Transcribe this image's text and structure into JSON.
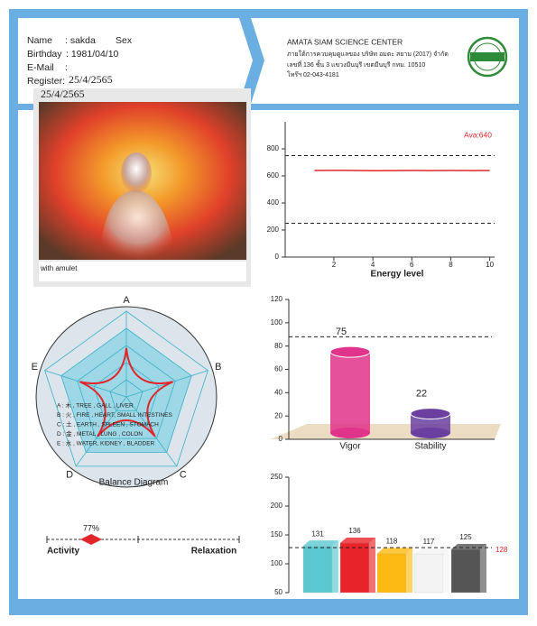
{
  "header": {
    "name_label": "Name",
    "name": ": sakda",
    "sex_label": "Sex",
    "birthday_label": "Birthday",
    "birthday": ": 1981/04/10",
    "email_label": "E-Mail",
    "email": ":",
    "register_label": "Register:",
    "register": "25/4/2565"
  },
  "company": {
    "name": "AMATA SIAM SCIENCE CENTER",
    "lines": [
      "ภายใต้การควบคุมดูแลของ บริษัท อมตะ สยาม (2017) จำกัด",
      "เลขที่ 136 ชั้น 3  แขวงมีนบุรี เขตมีนบุรี กทม. 10510",
      "โทร๊ฯ 02-043-4181"
    ]
  },
  "photo": {
    "date": "25/4/2565",
    "caption": "with amulet"
  },
  "energy_chart": {
    "type": "line",
    "xlabel": "Energy level",
    "annotation": "Ava:640",
    "color": "#e0262b",
    "x": [
      1,
      2,
      3,
      4,
      5,
      6,
      7,
      8,
      9,
      10
    ],
    "values": [
      640,
      641,
      640,
      638,
      639,
      640,
      639,
      640,
      639,
      640
    ],
    "xlim": [
      -0.5,
      10.25
    ],
    "xticks": [
      2,
      4,
      6,
      8,
      10
    ],
    "ylim": [
      0,
      1000
    ],
    "yticks": [
      0,
      200,
      400,
      600,
      800
    ],
    "reference_lines": [
      750,
      250
    ]
  },
  "balance": {
    "type": "radar",
    "axes": [
      "A",
      "B",
      "C",
      "D",
      "E"
    ],
    "values": [
      57,
      57,
      57,
      57,
      57
    ],
    "rlim": [
      0,
      100
    ],
    "rticks": [
      20,
      40,
      60,
      80,
      100
    ],
    "color": "#e0262b",
    "caption": "Balance Diagram",
    "legend": [
      "A : 木 , TREE , GALL , LIVER",
      "B : 火 , FIRE , HEART, SMALL INTESTINES",
      "C : 土 , EARTH , SPLEEN , STOMACH",
      "D : 金 , METAL , LUNG , COLON",
      "E : 水 , WATER, KIDNEY , BLADDER"
    ]
  },
  "vigor_chart": {
    "type": "cylinder",
    "categories": [
      "Vigor",
      "Stability"
    ],
    "values": [
      75,
      22
    ],
    "colors": [
      "#e0338a",
      "#6a3fa0"
    ],
    "ylim": [
      0,
      120
    ],
    "yticks": [
      0,
      20,
      40,
      60,
      80,
      100,
      120
    ],
    "reference": 88
  },
  "activity": {
    "type": "slider",
    "left_label": "Activity",
    "right_label": "Relaxation",
    "value": 77,
    "value_label": "77%",
    "xlim": [
      100,
      0
    ],
    "color": "#e0262b"
  },
  "bottom_chart": {
    "type": "bar3d",
    "values": [
      131,
      136,
      118,
      117,
      125
    ],
    "colors": [
      "#5bc8d0",
      "#e8232a",
      "#fdb913",
      "#f3f3f3",
      "#555555"
    ],
    "ylim": [
      50,
      250
    ],
    "yticks": [
      50,
      100,
      150,
      200,
      250
    ],
    "reference": 128,
    "reference_label": "128"
  }
}
